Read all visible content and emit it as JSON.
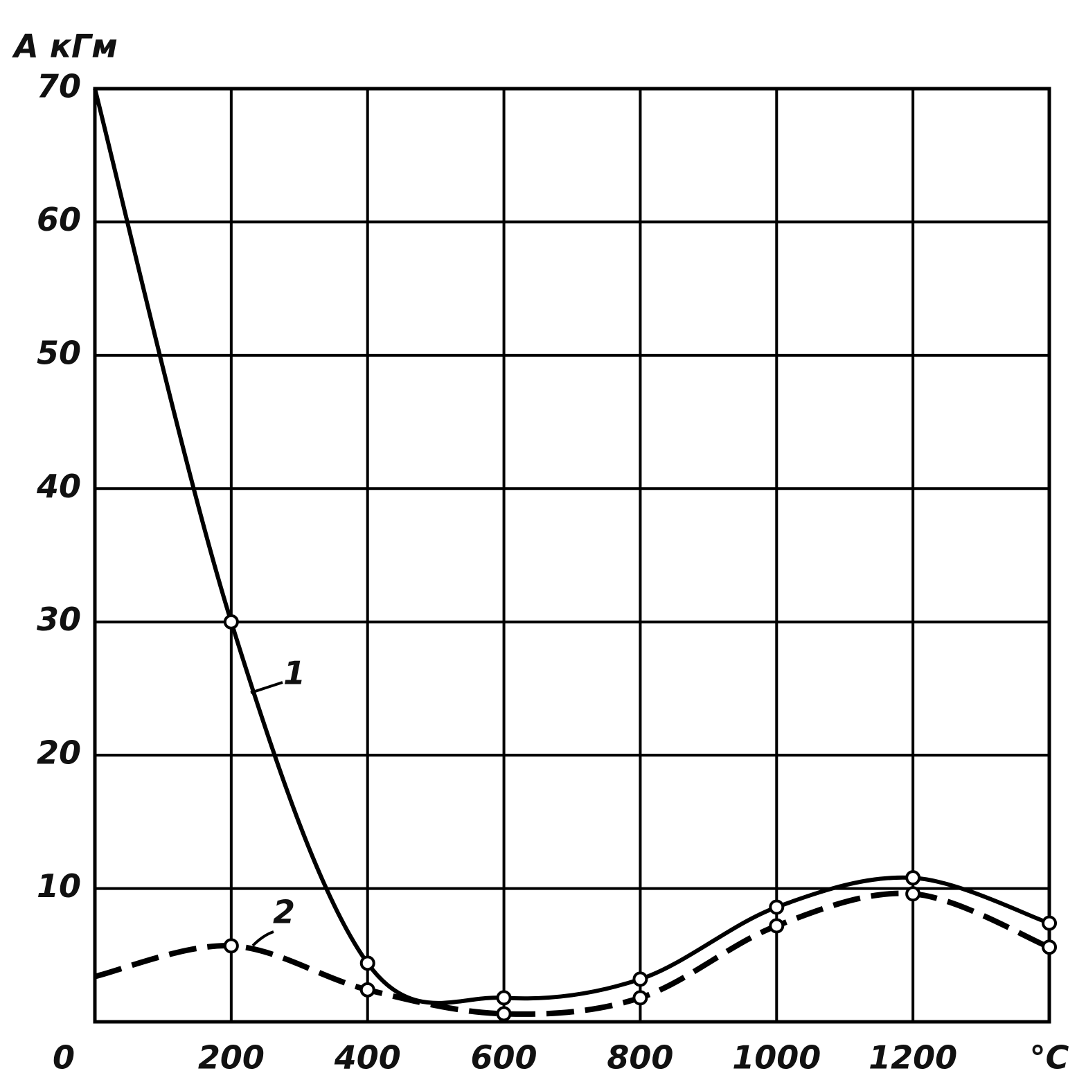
{
  "chart_data": {
    "type": "line",
    "y_label": "A кГм",
    "x": [
      0,
      200,
      400,
      600,
      800,
      1000,
      1200,
      1400
    ],
    "series": [
      {
        "name": "1",
        "color": "#000000",
        "dashed": false,
        "values": [
          70,
          30,
          4.4,
          1.8,
          3.2,
          8.6,
          10.8,
          7.4
        ]
      },
      {
        "name": "2",
        "color": "#000000",
        "dashed": true,
        "values": [
          3.4,
          5.7,
          2.4,
          0.6,
          1.8,
          7.2,
          9.6,
          5.6
        ]
      }
    ],
    "xlim": [
      0,
      1400
    ],
    "ylim": [
      0,
      70
    ],
    "xticks": [
      0,
      200,
      400,
      600,
      800,
      1000,
      1200,
      {
        "value": 1400,
        "label": "°C"
      }
    ],
    "yticks": [
      10,
      20,
      30,
      40,
      50,
      60,
      70
    ],
    "grid": true
  }
}
